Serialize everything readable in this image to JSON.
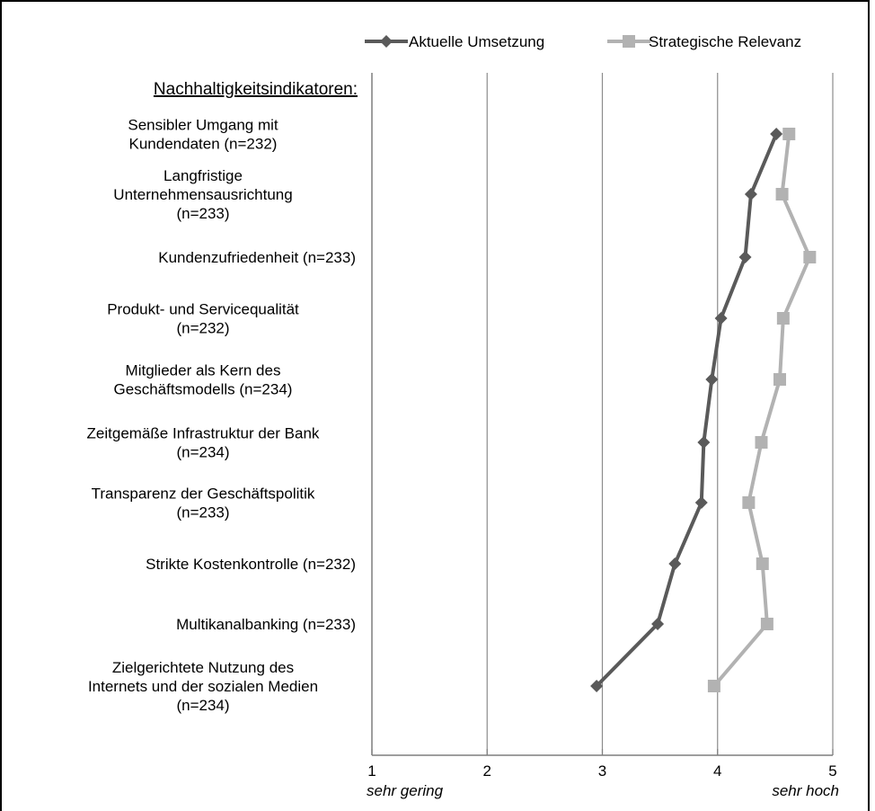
{
  "chart_data": {
    "type": "line",
    "orientation": "horizontal-values",
    "header": "Nachhaltigkeitsindikatoren:",
    "categories": [
      [
        "Sensibler Umgang mit",
        "Kundendaten (n=232)"
      ],
      [
        "Langfristige",
        "Unternehmensausrichtung",
        "(n=233)"
      ],
      [
        "Kundenzufriedenheit (n=233)"
      ],
      [
        "Produkt- und Servicequalität",
        "(n=232)"
      ],
      [
        "Mitglieder als Kern des",
        "Geschäftsmodells (n=234)"
      ],
      [
        "Zeitgemäße Infrastruktur der Bank",
        "(n=234)"
      ],
      [
        "Transparenz der Geschäftspolitik",
        "(n=233)"
      ],
      [
        "Strikte Kostenkontrolle (n=232)"
      ],
      [
        "Multikanalbanking (n=233)"
      ],
      [
        "Zielgerichtete Nutzung des",
        "Internets und der sozialen Medien",
        "(n=234)"
      ]
    ],
    "series": [
      {
        "name": "Aktuelle Umsetzung",
        "color": "#5a5a5a",
        "marker": "diamond",
        "values": [
          4.51,
          4.29,
          4.24,
          4.03,
          3.95,
          3.88,
          3.86,
          3.63,
          3.48,
          2.95
        ]
      },
      {
        "name": "Strategische Relevanz",
        "color": "#b2b2b2",
        "marker": "square",
        "values": [
          4.62,
          4.56,
          4.8,
          4.57,
          4.54,
          4.38,
          4.27,
          4.39,
          4.43,
          3.97
        ]
      }
    ],
    "xlim": [
      1,
      5
    ],
    "xticks": [
      "1",
      "2",
      "3",
      "4",
      "5"
    ],
    "xtick_sublabels": {
      "1": "sehr gering",
      "5": "sehr hoch"
    },
    "grid": true,
    "legend_position": "top-right"
  }
}
